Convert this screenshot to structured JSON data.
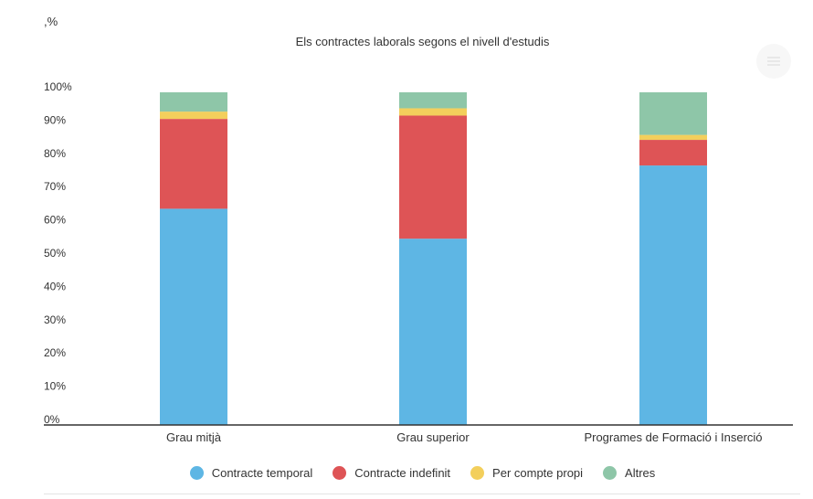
{
  "unit_label": ",%",
  "chart_data": {
    "type": "bar",
    "stacked": true,
    "title": "Els contractes laborals segons el nivell d'estudis",
    "xlabel": "",
    "ylabel": ",%",
    "ylim": [
      0,
      100
    ],
    "y_ticks": [
      "0%",
      "10%",
      "20%",
      "30%",
      "40%",
      "50%",
      "60%",
      "70%",
      "80%",
      "90%",
      "100%"
    ],
    "categories": [
      "Grau mitjà",
      "Grau superior",
      "Programes de Formació i Inserció"
    ],
    "series": [
      {
        "name": "Contracte temporal",
        "color": "#5eb6e4",
        "values": [
          65,
          56,
          78
        ]
      },
      {
        "name": "Contracte indefinit",
        "color": "#de5456",
        "values": [
          27,
          37,
          7.7
        ]
      },
      {
        "name": "Per compte propi",
        "color": "#f3cf5c",
        "values": [
          2.2,
          2.2,
          1.5
        ]
      },
      {
        "name": "Altres",
        "color": "#8ec6a8",
        "values": [
          5.8,
          4.8,
          12.8
        ]
      }
    ],
    "grid": false,
    "legend_position": "bottom"
  }
}
